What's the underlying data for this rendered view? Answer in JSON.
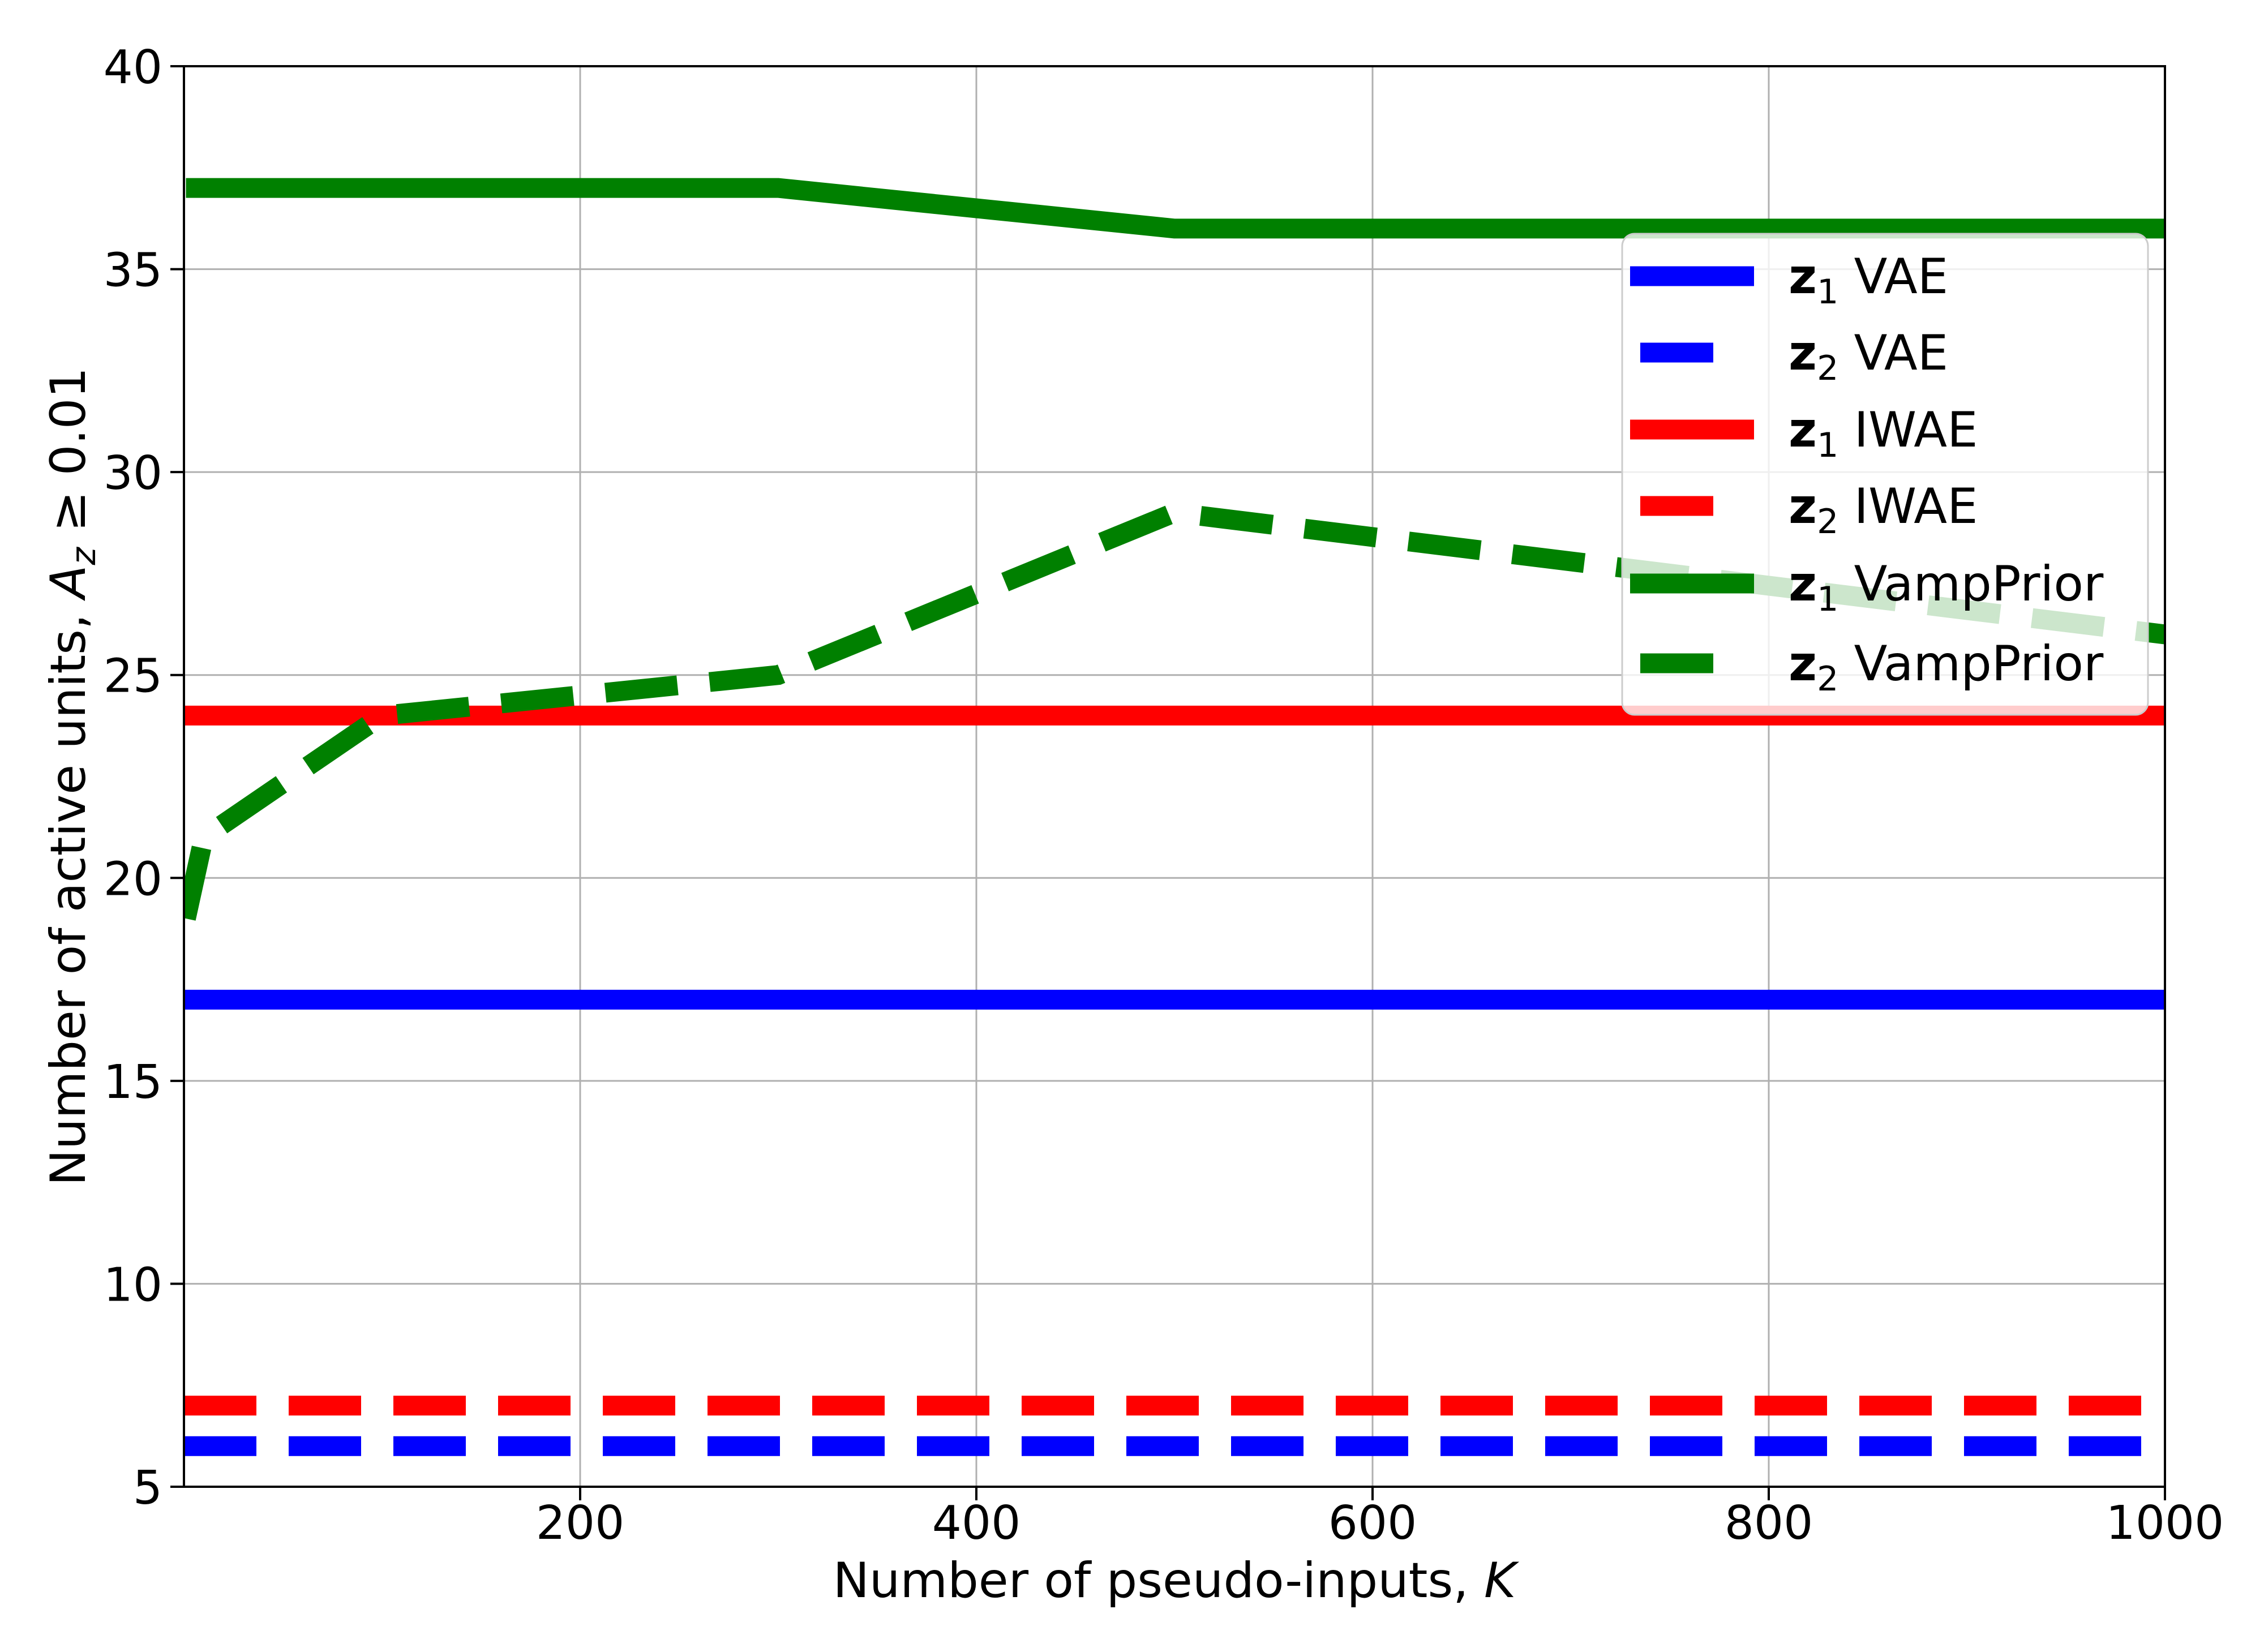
{
  "chart_data": {
    "type": "line",
    "title": "",
    "xlabel": "Number of pseudo-inputs, K",
    "ylabel": "Number of active units, A_z ≥ 0.01",
    "xlim": [
      0,
      1000
    ],
    "ylim": [
      5,
      40
    ],
    "grid": true,
    "legend_position": "upper right",
    "xticks": [
      200,
      400,
      600,
      800,
      1000
    ],
    "yticks": [
      5,
      10,
      15,
      20,
      25,
      30,
      35,
      40
    ],
    "series": [
      {
        "name": "z1 VAE",
        "latent": "z",
        "sub": "1",
        "model": "VAE",
        "color": "#0000ff",
        "style": "solid",
        "x": [
          0,
          1000
        ],
        "values": [
          17,
          17
        ]
      },
      {
        "name": "z2 VAE",
        "latent": "z",
        "sub": "2",
        "model": "VAE",
        "color": "#0000ff",
        "style": "dashed",
        "x": [
          0,
          1000
        ],
        "values": [
          6,
          6
        ]
      },
      {
        "name": "z1 IWAE",
        "latent": "z",
        "sub": "1",
        "model": "IWAE",
        "color": "#ff0000",
        "style": "solid",
        "x": [
          0,
          1000
        ],
        "values": [
          24,
          24
        ]
      },
      {
        "name": "z2 IWAE",
        "latent": "z",
        "sub": "2",
        "model": "IWAE",
        "color": "#ff0000",
        "style": "dashed",
        "x": [
          0,
          1000
        ],
        "values": [
          7,
          7
        ]
      },
      {
        "name": "z1 VampPrior",
        "latent": "z",
        "sub": "1",
        "model": "VampPrior",
        "color": "#008000",
        "style": "solid",
        "x": [
          1,
          10,
          100,
          300,
          500,
          1000
        ],
        "values": [
          37,
          37,
          37,
          37,
          36,
          36
        ]
      },
      {
        "name": "z2 VampPrior",
        "latent": "z",
        "sub": "2",
        "model": "VampPrior",
        "color": "#008000",
        "style": "dashed",
        "x": [
          1,
          10,
          100,
          300,
          500,
          1000
        ],
        "values": [
          19,
          21,
          24,
          25,
          29,
          26
        ]
      }
    ]
  },
  "axes": {
    "xlabel_main": "Number of pseudo-inputs, ",
    "xlabel_var": "K",
    "ylabel_main": "Number of active units, ",
    "ylabel_var": "A",
    "ylabel_sub": "z",
    "ylabel_tail": " ≥ 0.01",
    "xticks": [
      "200",
      "400",
      "600",
      "800",
      "1000"
    ],
    "yticks": [
      "5",
      "10",
      "15",
      "20",
      "25",
      "30",
      "35",
      "40"
    ]
  },
  "legend": {
    "items": [
      {
        "z": "z",
        "sub": "1",
        "model": "VAE"
      },
      {
        "z": "z",
        "sub": "2",
        "model": "VAE"
      },
      {
        "z": "z",
        "sub": "1",
        "model": "IWAE"
      },
      {
        "z": "z",
        "sub": "2",
        "model": "IWAE"
      },
      {
        "z": "z",
        "sub": "1",
        "model": "VampPrior"
      },
      {
        "z": "z",
        "sub": "2",
        "model": "VampPrior"
      }
    ]
  }
}
